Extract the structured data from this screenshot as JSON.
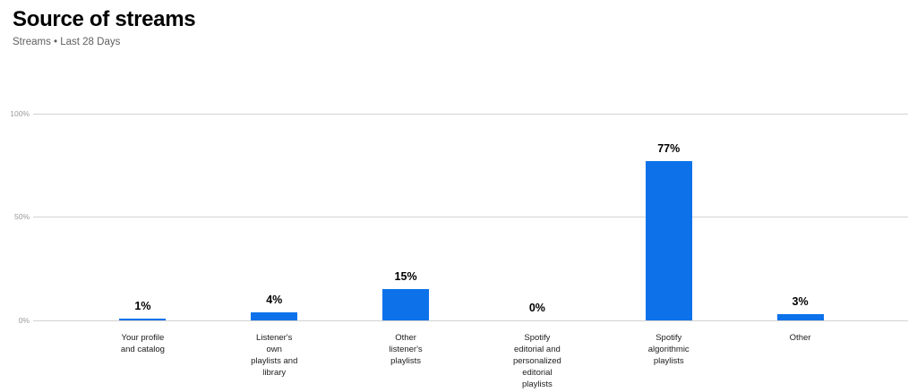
{
  "header": {
    "title": "Source of streams",
    "subtitle": "Streams • Last 28 Days"
  },
  "chart_data": {
    "type": "bar",
    "title": "Source of streams",
    "subtitle": "Streams • Last 28 Days",
    "categories": [
      "Your profile\nand catalog",
      "Listener's\nown\nplaylists and\nlibrary",
      "Other\nlistener's\nplaylists",
      "Spotify\neditorial and\npersonalized\neditorial\nplaylists",
      "Spotify\nalgorithmic\nplaylists",
      "Other"
    ],
    "values": [
      1,
      4,
      15,
      0,
      77,
      3
    ],
    "value_labels": [
      "1%",
      "4%",
      "15%",
      "0%",
      "77%",
      "3%"
    ],
    "xlabel": "",
    "ylabel": "",
    "ylim": [
      0,
      100
    ],
    "yticks": [
      {
        "value": 0,
        "label": "0%"
      },
      {
        "value": 50,
        "label": "50%"
      },
      {
        "value": 100,
        "label": "100%"
      }
    ],
    "grid": true,
    "legend": false
  },
  "colors": {
    "bar": "#0d72ea",
    "grid": "#d2d2d2",
    "axis_tick": "#9a9a9a",
    "title": "#000000",
    "subtitle": "#5f5f5f",
    "category_label": "#1c1c1c",
    "value_label": "#000000"
  }
}
